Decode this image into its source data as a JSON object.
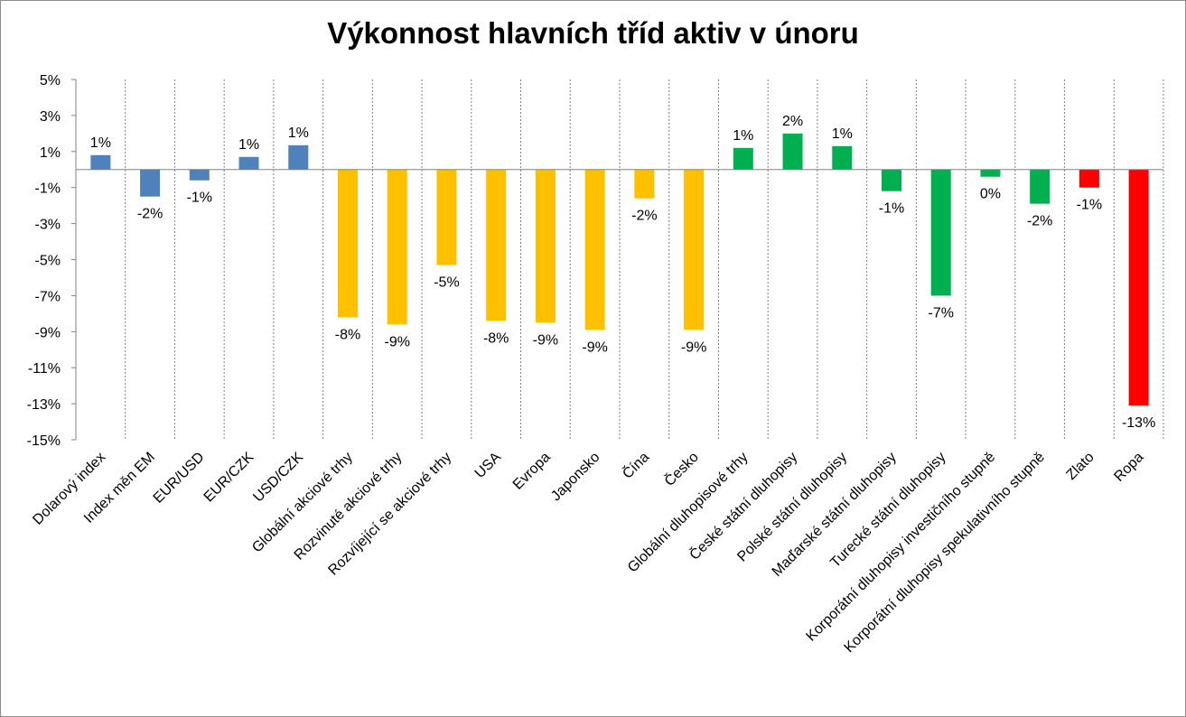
{
  "chart_data": {
    "type": "bar",
    "title": "Výkonnost hlavních tříd aktiv v únoru",
    "xlabel": "",
    "ylabel": "",
    "ylim": [
      -15,
      5
    ],
    "y_ticks": [
      "5%",
      "3%",
      "1%",
      "-1%",
      "-3%",
      "-5%",
      "-7%",
      "-9%",
      "-11%",
      "-13%",
      "-15%"
    ],
    "grid": "vertical dashed separators between categories",
    "categories": [
      "Dolarový index",
      "Index měn EM",
      "EUR/USD",
      "EUR/CZK",
      "USD/CZK",
      "Globální akciové trhy",
      "Rozvinuté akciové trhy",
      "Rozvíjející se akciové trhy",
      "USA",
      "Evropa",
      "Japonsko",
      "Čína",
      "Česko",
      "Globální dluhopisové trhy",
      "České státní dluhopisy",
      "Polské státní dluhopisy",
      "Maďarské státní dluhopisy",
      "Turecké státní dluhopisy",
      "Korporátní dluhopisy investičního stupně",
      "Korporátní dluhopisy spekulativního stupně",
      "Zlato",
      "Ropa"
    ],
    "values": [
      0.8,
      -1.5,
      -0.6,
      0.7,
      1.35,
      -8.2,
      -8.6,
      -5.3,
      -8.4,
      -8.5,
      -8.9,
      -1.6,
      -8.9,
      1.2,
      2.0,
      1.3,
      -1.2,
      -7.0,
      -0.4,
      -1.9,
      -1.0,
      -13.1
    ],
    "data_labels": [
      "1%",
      "-2%",
      "-1%",
      "1%",
      "1%",
      "-8%",
      "-9%",
      "-5%",
      "-8%",
      "-9%",
      "-9%",
      "-2%",
      "-9%",
      "1%",
      "2%",
      "1%",
      "-1%",
      "-7%",
      "0%",
      "-2%",
      "-1%",
      "-13%"
    ],
    "bar_colors": [
      "#4f81bd",
      "#4f81bd",
      "#4f81bd",
      "#4f81bd",
      "#4f81bd",
      "#ffc000",
      "#ffc000",
      "#ffc000",
      "#ffc000",
      "#ffc000",
      "#ffc000",
      "#ffc000",
      "#ffc000",
      "#00b050",
      "#00b050",
      "#00b050",
      "#00b050",
      "#00b050",
      "#00b050",
      "#00b050",
      "#ff0000",
      "#ff0000"
    ]
  }
}
